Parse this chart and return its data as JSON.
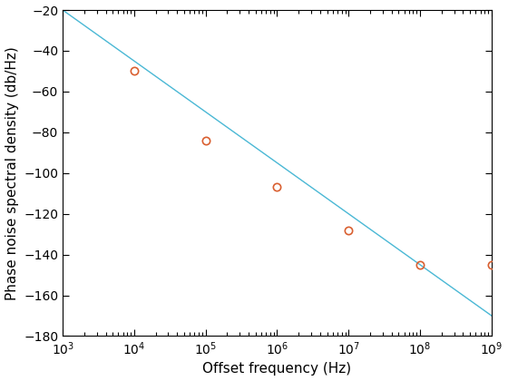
{
  "xlabel": "Offset frequency (Hz)",
  "ylabel": "Phase noise spectral density (db/Hz)",
  "xlim_log": [
    3,
    9
  ],
  "ylim": [
    -180,
    -20
  ],
  "yticks": [
    -180,
    -160,
    -140,
    -120,
    -100,
    -80,
    -60,
    -40,
    -20
  ],
  "line_color": "#4ab8d5",
  "marker_color": "#d95f30",
  "line_xstart_log": 3,
  "line_xend_log": 9,
  "line_y_at_1e3": -20,
  "line_slope_per_decade": -25,
  "measured_log_freqs": [
    4,
    5,
    6,
    7,
    8,
    9
  ],
  "measured_values": [
    -50,
    -84,
    -107,
    -128,
    -145,
    -145
  ],
  "background_color": "#ffffff",
  "line_width": 1.0,
  "marker_size": 6,
  "marker_linewidth": 1.2,
  "tick_labelsize": 10,
  "axis_labelsize": 11
}
